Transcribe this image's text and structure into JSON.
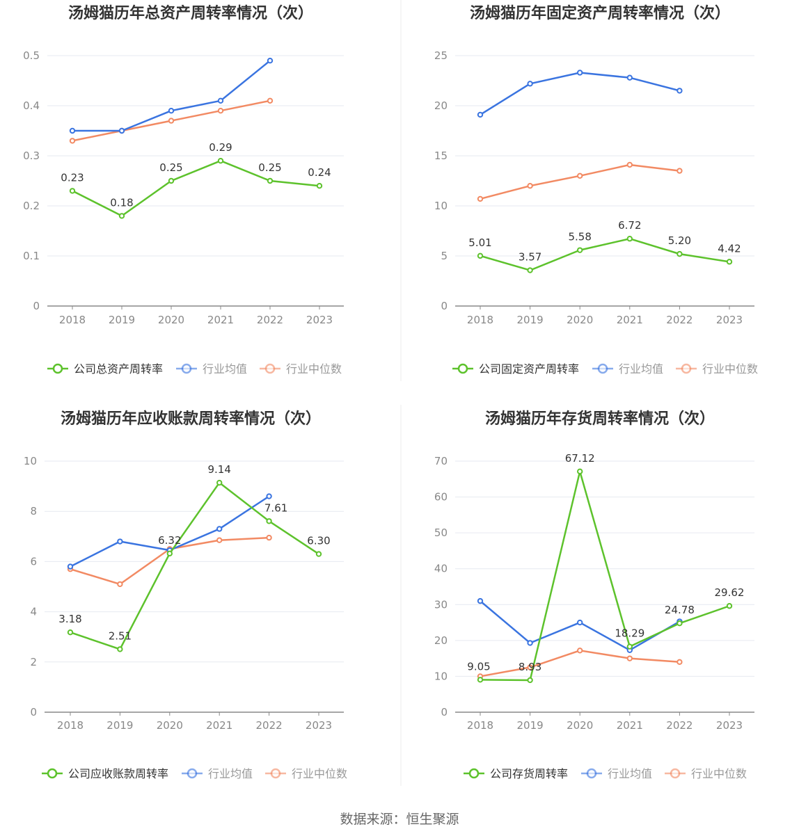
{
  "colors": {
    "company": "#5dc22c",
    "average": "#3a74e0",
    "median": "#f28a63",
    "grid": "#e6e9f0",
    "axis": "#888888",
    "tick_text": "#888888",
    "title_text": "#333333",
    "label_text": "#333333",
    "divider": "#eeeeee"
  },
  "chart_data": [
    {
      "type": "line",
      "title": "汤姆猫历年总资产周转率情况（次）",
      "categories": [
        "2018",
        "2019",
        "2020",
        "2021",
        "2022",
        "2023"
      ],
      "ylim": [
        0,
        0.5
      ],
      "yticks": [
        "0",
        "0.1",
        "0.2",
        "0.3",
        "0.4",
        "0.5"
      ],
      "series": [
        {
          "name": "公司总资产周转率",
          "role": "company",
          "values": [
            0.23,
            0.18,
            0.25,
            0.29,
            0.25,
            0.24
          ],
          "labels": [
            "0.23",
            "0.18",
            "0.25",
            "0.29",
            "0.25",
            "0.24"
          ]
        },
        {
          "name": "行业均值",
          "role": "average",
          "values": [
            0.35,
            0.35,
            0.39,
            0.41,
            0.49,
            null
          ]
        },
        {
          "name": "行业中位数",
          "role": "median",
          "values": [
            0.33,
            0.35,
            0.37,
            0.39,
            0.41,
            null
          ]
        }
      ]
    },
    {
      "type": "line",
      "title": "汤姆猫历年固定资产周转率情况（次）",
      "categories": [
        "2018",
        "2019",
        "2020",
        "2021",
        "2022",
        "2023"
      ],
      "ylim": [
        0,
        25
      ],
      "yticks": [
        "0",
        "5",
        "10",
        "15",
        "20",
        "25"
      ],
      "series": [
        {
          "name": "公司固定资产周转率",
          "role": "company",
          "values": [
            5.01,
            3.57,
            5.58,
            6.72,
            5.2,
            4.42
          ],
          "labels": [
            "5.01",
            "3.57",
            "5.58",
            "6.72",
            "5.20",
            "4.42"
          ]
        },
        {
          "name": "行业均值",
          "role": "average",
          "values": [
            19.1,
            22.2,
            23.3,
            22.8,
            21.5,
            null
          ]
        },
        {
          "name": "行业中位数",
          "role": "median",
          "values": [
            10.7,
            12.0,
            13.0,
            14.1,
            13.5,
            null
          ]
        }
      ]
    },
    {
      "type": "line",
      "title": "汤姆猫历年应收账款周转率情况（次）",
      "categories": [
        "2018",
        "2019",
        "2020",
        "2021",
        "2022",
        "2023"
      ],
      "ylim": [
        0,
        10
      ],
      "yticks": [
        "0",
        "2",
        "4",
        "6",
        "8",
        "10"
      ],
      "series": [
        {
          "name": "公司应收账款周转率",
          "role": "company",
          "values": [
            3.18,
            2.51,
            6.32,
            9.14,
            7.61,
            6.3
          ],
          "labels": [
            "3.18",
            "2.51",
            "6.32",
            "9.14",
            "7.61",
            "6.30"
          ]
        },
        {
          "name": "行业均值",
          "role": "average",
          "values": [
            5.8,
            6.8,
            6.45,
            7.3,
            8.6,
            null
          ]
        },
        {
          "name": "行业中位数",
          "role": "median",
          "values": [
            5.7,
            5.1,
            6.5,
            6.85,
            6.95,
            null
          ]
        }
      ]
    },
    {
      "type": "line",
      "title": "汤姆猫历年存货周转率情况（次）",
      "categories": [
        "2018",
        "2019",
        "2020",
        "2021",
        "2022",
        "2023"
      ],
      "ylim": [
        0,
        70
      ],
      "yticks": [
        "0",
        "10",
        "20",
        "30",
        "40",
        "50",
        "60",
        "70"
      ],
      "series": [
        {
          "name": "公司存货周转率",
          "role": "company",
          "values": [
            9.05,
            8.93,
            67.12,
            18.29,
            24.78,
            29.62
          ],
          "labels": [
            "9.05",
            "8.93",
            "67.12",
            "18.29",
            "24.78",
            "29.62"
          ]
        },
        {
          "name": "行业均值",
          "role": "average",
          "values": [
            31.0,
            19.3,
            25.0,
            17.3,
            25.3,
            null
          ]
        },
        {
          "name": "行业中位数",
          "role": "median",
          "values": [
            10.0,
            12.5,
            17.2,
            15.0,
            14.0,
            null
          ]
        }
      ]
    }
  ],
  "footer": {
    "source": "数据来源：恒生聚源"
  }
}
